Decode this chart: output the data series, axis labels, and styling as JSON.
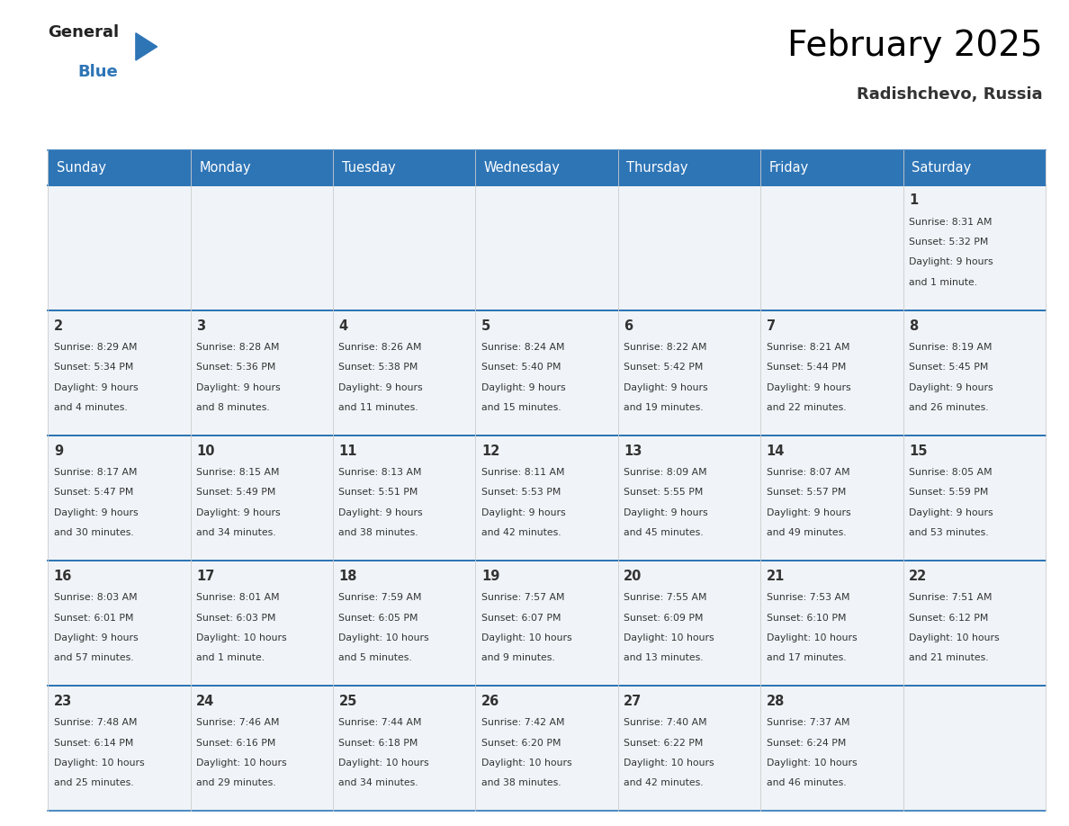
{
  "title": "February 2025",
  "subtitle": "Radishchevo, Russia",
  "days_of_week": [
    "Sunday",
    "Monday",
    "Tuesday",
    "Wednesday",
    "Thursday",
    "Friday",
    "Saturday"
  ],
  "header_bg": "#2E75B6",
  "header_text": "#FFFFFF",
  "cell_bg": "#F0F4F8",
  "border_color": "#2E75B6",
  "cell_text_color": "#333333",
  "title_color": "#000000",
  "subtitle_color": "#333333",
  "calendar": [
    [
      null,
      null,
      null,
      null,
      null,
      null,
      {
        "day": 1,
        "sunrise": "8:31 AM",
        "sunset": "5:32 PM",
        "daylight_line1": "Daylight: 9 hours",
        "daylight_line2": "and 1 minute."
      }
    ],
    [
      {
        "day": 2,
        "sunrise": "8:29 AM",
        "sunset": "5:34 PM",
        "daylight_line1": "Daylight: 9 hours",
        "daylight_line2": "and 4 minutes."
      },
      {
        "day": 3,
        "sunrise": "8:28 AM",
        "sunset": "5:36 PM",
        "daylight_line1": "Daylight: 9 hours",
        "daylight_line2": "and 8 minutes."
      },
      {
        "day": 4,
        "sunrise": "8:26 AM",
        "sunset": "5:38 PM",
        "daylight_line1": "Daylight: 9 hours",
        "daylight_line2": "and 11 minutes."
      },
      {
        "day": 5,
        "sunrise": "8:24 AM",
        "sunset": "5:40 PM",
        "daylight_line1": "Daylight: 9 hours",
        "daylight_line2": "and 15 minutes."
      },
      {
        "day": 6,
        "sunrise": "8:22 AM",
        "sunset": "5:42 PM",
        "daylight_line1": "Daylight: 9 hours",
        "daylight_line2": "and 19 minutes."
      },
      {
        "day": 7,
        "sunrise": "8:21 AM",
        "sunset": "5:44 PM",
        "daylight_line1": "Daylight: 9 hours",
        "daylight_line2": "and 22 minutes."
      },
      {
        "day": 8,
        "sunrise": "8:19 AM",
        "sunset": "5:45 PM",
        "daylight_line1": "Daylight: 9 hours",
        "daylight_line2": "and 26 minutes."
      }
    ],
    [
      {
        "day": 9,
        "sunrise": "8:17 AM",
        "sunset": "5:47 PM",
        "daylight_line1": "Daylight: 9 hours",
        "daylight_line2": "and 30 minutes."
      },
      {
        "day": 10,
        "sunrise": "8:15 AM",
        "sunset": "5:49 PM",
        "daylight_line1": "Daylight: 9 hours",
        "daylight_line2": "and 34 minutes."
      },
      {
        "day": 11,
        "sunrise": "8:13 AM",
        "sunset": "5:51 PM",
        "daylight_line1": "Daylight: 9 hours",
        "daylight_line2": "and 38 minutes."
      },
      {
        "day": 12,
        "sunrise": "8:11 AM",
        "sunset": "5:53 PM",
        "daylight_line1": "Daylight: 9 hours",
        "daylight_line2": "and 42 minutes."
      },
      {
        "day": 13,
        "sunrise": "8:09 AM",
        "sunset": "5:55 PM",
        "daylight_line1": "Daylight: 9 hours",
        "daylight_line2": "and 45 minutes."
      },
      {
        "day": 14,
        "sunrise": "8:07 AM",
        "sunset": "5:57 PM",
        "daylight_line1": "Daylight: 9 hours",
        "daylight_line2": "and 49 minutes."
      },
      {
        "day": 15,
        "sunrise": "8:05 AM",
        "sunset": "5:59 PM",
        "daylight_line1": "Daylight: 9 hours",
        "daylight_line2": "and 53 minutes."
      }
    ],
    [
      {
        "day": 16,
        "sunrise": "8:03 AM",
        "sunset": "6:01 PM",
        "daylight_line1": "Daylight: 9 hours",
        "daylight_line2": "and 57 minutes."
      },
      {
        "day": 17,
        "sunrise": "8:01 AM",
        "sunset": "6:03 PM",
        "daylight_line1": "Daylight: 10 hours",
        "daylight_line2": "and 1 minute."
      },
      {
        "day": 18,
        "sunrise": "7:59 AM",
        "sunset": "6:05 PM",
        "daylight_line1": "Daylight: 10 hours",
        "daylight_line2": "and 5 minutes."
      },
      {
        "day": 19,
        "sunrise": "7:57 AM",
        "sunset": "6:07 PM",
        "daylight_line1": "Daylight: 10 hours",
        "daylight_line2": "and 9 minutes."
      },
      {
        "day": 20,
        "sunrise": "7:55 AM",
        "sunset": "6:09 PM",
        "daylight_line1": "Daylight: 10 hours",
        "daylight_line2": "and 13 minutes."
      },
      {
        "day": 21,
        "sunrise": "7:53 AM",
        "sunset": "6:10 PM",
        "daylight_line1": "Daylight: 10 hours",
        "daylight_line2": "and 17 minutes."
      },
      {
        "day": 22,
        "sunrise": "7:51 AM",
        "sunset": "6:12 PM",
        "daylight_line1": "Daylight: 10 hours",
        "daylight_line2": "and 21 minutes."
      }
    ],
    [
      {
        "day": 23,
        "sunrise": "7:48 AM",
        "sunset": "6:14 PM",
        "daylight_line1": "Daylight: 10 hours",
        "daylight_line2": "and 25 minutes."
      },
      {
        "day": 24,
        "sunrise": "7:46 AM",
        "sunset": "6:16 PM",
        "daylight_line1": "Daylight: 10 hours",
        "daylight_line2": "and 29 minutes."
      },
      {
        "day": 25,
        "sunrise": "7:44 AM",
        "sunset": "6:18 PM",
        "daylight_line1": "Daylight: 10 hours",
        "daylight_line2": "and 34 minutes."
      },
      {
        "day": 26,
        "sunrise": "7:42 AM",
        "sunset": "6:20 PM",
        "daylight_line1": "Daylight: 10 hours",
        "daylight_line2": "and 38 minutes."
      },
      {
        "day": 27,
        "sunrise": "7:40 AM",
        "sunset": "6:22 PM",
        "daylight_line1": "Daylight: 10 hours",
        "daylight_line2": "and 42 minutes."
      },
      {
        "day": 28,
        "sunrise": "7:37 AM",
        "sunset": "6:24 PM",
        "daylight_line1": "Daylight: 10 hours",
        "daylight_line2": "and 46 minutes."
      },
      null
    ]
  ],
  "n_rows": 5,
  "n_cols": 7
}
